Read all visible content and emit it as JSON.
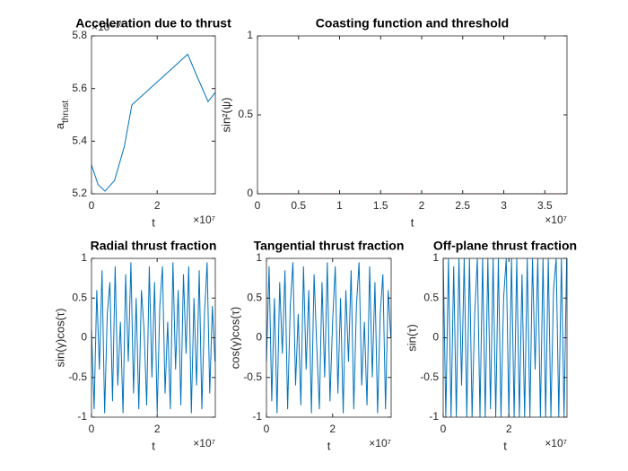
{
  "chart_data": [
    {
      "type": "line",
      "title": "Acceleration due to thrust",
      "xlabel": "t",
      "ylabel": [
        "a",
        "thrust"
      ],
      "x_exponent": "×10⁷",
      "y_exponent": "×10⁻¹⁰",
      "x": [
        0,
        0.2,
        0.41,
        0.7,
        1.0,
        1.23,
        2.0,
        2.93,
        3.2,
        3.55,
        3.77
      ],
      "series": [
        {
          "color": "#0072bd",
          "values": [
            5.31,
            5.235,
            5.21,
            5.25,
            5.38,
            5.538,
            5.625,
            5.73,
            5.65,
            5.55,
            5.585
          ]
        }
      ],
      "xlim": [
        0,
        3.77
      ],
      "ylim": [
        5.2,
        5.8
      ],
      "xticks": [
        0,
        2
      ],
      "yticks": [
        5.2,
        5.4,
        5.6,
        5.8
      ]
    },
    {
      "type": "line",
      "title": "Coasting function and threshold",
      "xlabel": "t",
      "ylabel": "sin²(ψ)",
      "x_exponent": "×10⁷",
      "x": [
        0,
        3.77
      ],
      "series": [
        {
          "color": "#0072bd",
          "values": [
            0,
            0
          ]
        },
        {
          "color": "#d95319",
          "line_style": "dashed",
          "values": [
            0,
            0
          ]
        }
      ],
      "xlim": [
        0,
        3.77
      ],
      "ylim": [
        0,
        1
      ],
      "xticks": [
        0,
        0.5,
        1,
        1.5,
        2,
        2.5,
        3,
        3.5
      ],
      "yticks": [
        0,
        0.5,
        1
      ]
    },
    {
      "type": "line",
      "title": "Radial thrust fraction",
      "xlabel": "t",
      "ylabel": "sin(γ)cos(τ)",
      "x_exponent": "×10⁷",
      "x": [
        0,
        0.08,
        0.16,
        0.24,
        0.32,
        0.4,
        0.48,
        0.56,
        0.64,
        0.72,
        0.8,
        0.88,
        0.96,
        1.04,
        1.12,
        1.2,
        1.28,
        1.36,
        1.44,
        1.52,
        1.6,
        1.68,
        1.76,
        1.84,
        1.92,
        2,
        2.08,
        2.16,
        2.24,
        2.32,
        2.4,
        2.48,
        2.56,
        2.64,
        2.72,
        2.8,
        2.88,
        2.96,
        3.04,
        3.12,
        3.2,
        3.28,
        3.36,
        3.44,
        3.52,
        3.6,
        3.68,
        3.76
      ],
      "series": [
        {
          "color": "#0072bd",
          "values": [
            0.1,
            -0.9,
            0.6,
            -0.4,
            0.85,
            -0.95,
            0.3,
            0.7,
            -0.8,
            0.9,
            -0.6,
            0.2,
            -0.95,
            0.8,
            -0.3,
            0.95,
            -0.7,
            0.5,
            -0.9,
            0.6,
            0.1,
            -0.85,
            0.9,
            -0.5,
            0.7,
            -0.95,
            0.4,
            0.9,
            -0.7,
            0.2,
            -0.9,
            0.95,
            -0.4,
            0.6,
            -0.85,
            0.8,
            -0.2,
            0.9,
            -0.95,
            0.5,
            -0.6,
            0.85,
            -0.9,
            0.3,
            0.95,
            -0.7,
            0.4,
            -0.3
          ]
        }
      ],
      "xlim": [
        0,
        3.77
      ],
      "ylim": [
        -1,
        1
      ],
      "xticks": [
        0,
        2
      ],
      "yticks": [
        -1,
        -0.5,
        0,
        0.5,
        1
      ]
    },
    {
      "type": "line",
      "title": "Tangential thrust fraction",
      "xlabel": "t",
      "ylabel": "cos(γ)cos(τ)",
      "x_exponent": "×10⁷",
      "x": [
        0,
        0.08,
        0.16,
        0.24,
        0.32,
        0.4,
        0.48,
        0.56,
        0.64,
        0.72,
        0.8,
        0.88,
        0.96,
        1.04,
        1.12,
        1.2,
        1.28,
        1.36,
        1.44,
        1.52,
        1.6,
        1.68,
        1.76,
        1.84,
        1.92,
        2,
        2.08,
        2.16,
        2.24,
        2.32,
        2.4,
        2.48,
        2.56,
        2.64,
        2.72,
        2.8,
        2.88,
        2.96,
        3.04,
        3.12,
        3.2,
        3.28,
        3.36,
        3.44,
        3.52,
        3.6,
        3.68,
        3.76
      ],
      "series": [
        {
          "color": "#0072bd",
          "values": [
            -0.3,
            0.9,
            -0.8,
            0.5,
            -0.95,
            0.7,
            -0.2,
            0.85,
            -0.9,
            0.4,
            0.95,
            -0.6,
            0.3,
            -0.85,
            0.9,
            -0.4,
            0.6,
            -0.95,
            0.8,
            -0.1,
            -0.9,
            0.7,
            -0.5,
            0.95,
            -0.8,
            0.2,
            0.9,
            -0.7,
            0.5,
            -0.95,
            0.6,
            -0.3,
            0.85,
            -0.9,
            0.4,
            0.95,
            -0.6,
            0.2,
            -0.85,
            0.9,
            -0.5,
            0.7,
            -0.95,
            0.3,
            0.8,
            -0.9,
            0.6,
            0
          ]
        }
      ],
      "xlim": [
        0,
        3.77
      ],
      "ylim": [
        -1,
        1
      ],
      "xticks": [
        0,
        2
      ],
      "yticks": [
        -1,
        -0.5,
        0,
        0.5,
        1
      ]
    },
    {
      "type": "line",
      "title": "Off-plane thrust fraction",
      "xlabel": "t",
      "ylabel": "sin(τ)",
      "x_exponent": "×10⁷",
      "x": [
        0,
        0.08,
        0.16,
        0.24,
        0.32,
        0.4,
        0.48,
        0.56,
        0.64,
        0.72,
        0.8,
        0.88,
        0.96,
        1.04,
        1.12,
        1.2,
        1.28,
        1.36,
        1.44,
        1.52,
        1.6,
        1.68,
        1.76,
        1.84,
        1.92,
        2,
        2.08,
        2.16,
        2.24,
        2.32,
        2.4,
        2.48,
        2.56,
        2.64,
        2.72,
        2.8,
        2.88,
        2.96,
        3.04,
        3.12,
        3.2,
        3.28,
        3.36,
        3.44,
        3.52,
        3.6,
        3.68,
        3.76
      ],
      "series": [
        {
          "color": "#0072bd",
          "values": [
            1,
            -1,
            1,
            -1,
            0.9,
            -1,
            1,
            -0.6,
            1,
            -1,
            1,
            -1,
            0.3,
            1,
            -1,
            1,
            -1,
            1,
            -0.9,
            1,
            -1,
            1,
            -1,
            0.5,
            1,
            -1,
            1,
            -1,
            1,
            -1,
            0.8,
            -1,
            1,
            -1,
            1,
            -0.4,
            1,
            -1,
            1,
            -1,
            1,
            -1,
            0.6,
            1,
            -1,
            1,
            -1,
            1
          ]
        }
      ],
      "xlim": [
        0,
        3.77
      ],
      "ylim": [
        -1,
        1
      ],
      "xticks": [
        0,
        2
      ],
      "yticks": [
        -1,
        -0.5,
        0,
        0.5,
        1
      ]
    }
  ]
}
